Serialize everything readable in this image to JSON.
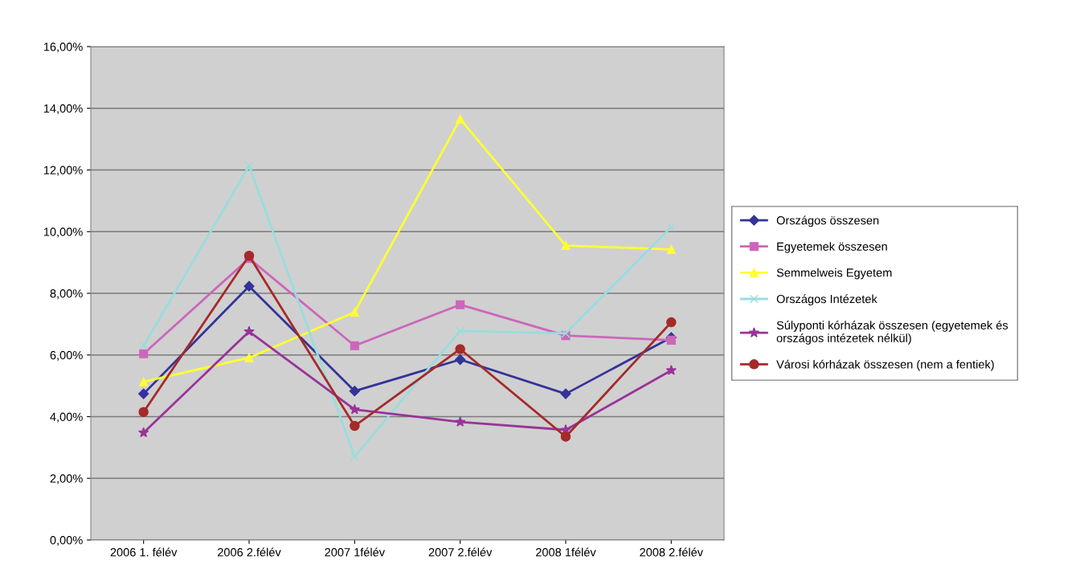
{
  "chart_data": {
    "type": "line",
    "categories": [
      "2006 1. félév",
      "2006 2.félév",
      "2007 1félév",
      "2007 2.félév",
      "2008 1félév",
      "2008 2.félév"
    ],
    "series": [
      {
        "name": "Országos összesen",
        "color": "#333399",
        "marker": "diamond",
        "values": [
          4.74,
          8.23,
          4.83,
          5.85,
          4.74,
          6.57
        ]
      },
      {
        "name": "Egyetemek összesen",
        "color": "#cc66bb",
        "marker": "square",
        "values": [
          6.04,
          9.13,
          6.3,
          7.63,
          6.63,
          6.48
        ]
      },
      {
        "name": "Semmelweis Egyetem",
        "color": "#ffff33",
        "marker": "triangle",
        "values": [
          5.13,
          5.91,
          7.39,
          13.65,
          9.55,
          9.42
        ]
      },
      {
        "name": "Országos Intézetek",
        "color": "#99dddd",
        "marker": "cross",
        "values": [
          6.3,
          12.13,
          2.7,
          6.78,
          6.7,
          10.15
        ]
      },
      {
        "name": "Súlyponti kórházak összesen (egyetemek és\nországos intézetek nélkül)",
        "color": "#993399",
        "marker": "star",
        "values": [
          3.48,
          6.76,
          4.23,
          3.83,
          3.57,
          5.5
        ]
      },
      {
        "name": "Városi kórházak összesen (nem a fentiek)",
        "color": "#a52a2a",
        "marker": "circle",
        "values": [
          4.15,
          9.22,
          3.7,
          6.19,
          3.35,
          7.06
        ]
      }
    ],
    "ylim": [
      0,
      16
    ],
    "yticks": [
      {
        "value": 0,
        "label": "0,00%"
      },
      {
        "value": 2,
        "label": "2,00%"
      },
      {
        "value": 4,
        "label": "4,00%"
      },
      {
        "value": 6,
        "label": "6,00%"
      },
      {
        "value": 8,
        "label": "8,00%"
      },
      {
        "value": 10,
        "label": "10,00%"
      },
      {
        "value": 12,
        "label": "12,00%"
      },
      {
        "value": 14,
        "label": "14,00%"
      },
      {
        "value": 16,
        "label": "16,00%"
      }
    ],
    "grid": "y",
    "legend": "right",
    "line_style": "solid"
  }
}
